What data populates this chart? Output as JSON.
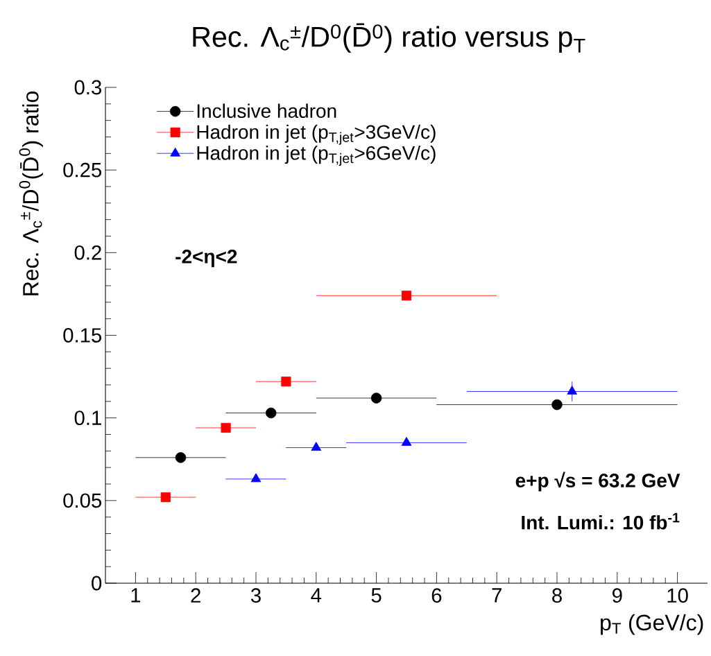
{
  "chart_data": {
    "type": "scatter",
    "title": "Rec. Λ$_{c}$$^{±}$/D$^{0}$(D̄$^{0}$) ratio versus p$_{T}$",
    "xlabel": "p$_{T}$ (GeV/c)",
    "ylabel": "Rec. Λ$_{c}$$^{±}$/D$^{0}$(D̄$^{0}$) ratio",
    "xlim": [
      0.5,
      10.5
    ],
    "xticks": [
      1,
      2,
      3,
      4,
      5,
      6,
      7,
      8,
      9,
      10
    ],
    "ylim": [
      0,
      0.3
    ],
    "yticks": [
      0,
      0.05,
      0.1,
      0.15,
      0.2,
      0.25,
      0.3
    ],
    "legend": "top left",
    "series": [
      {
        "name": "Inclusive hadron",
        "color": "#000000",
        "marker": "circle",
        "x": [
          1.75,
          3.25,
          5,
          8
        ],
        "values": [
          0.076,
          0.103,
          0.112,
          0.108
        ],
        "xerrors": [
          0.75,
          0.75,
          1,
          2
        ]
      },
      {
        "name": "Hadron in jet (p$_{T,jet}$>3GeV/c)",
        "color": "#ff0000",
        "marker": "square",
        "x": [
          1.5,
          2.5,
          3.5,
          5.5
        ],
        "values": [
          0.052,
          0.094,
          0.122,
          0.174
        ],
        "xerrors": [
          0.5,
          0.5,
          0.5,
          1.5
        ]
      },
      {
        "name": "Hadron in jet (p$_{T,jet}$>6GeV/c)",
        "color": "#0000ff",
        "marker": "triangle",
        "x": [
          3,
          4,
          5.5,
          8.25
        ],
        "values": [
          0.063,
          0.082,
          0.085,
          0.116
        ],
        "xerrors": [
          0.5,
          0.5,
          1,
          1.75
        ],
        "errors": [
          null,
          null,
          null,
          0.006
        ]
      }
    ],
    "annotations": [
      "-2<η<2",
      "e+p  √s = 63.2 GeV",
      "Int. Lumi.: 10 fb$^{-1}$"
    ]
  }
}
